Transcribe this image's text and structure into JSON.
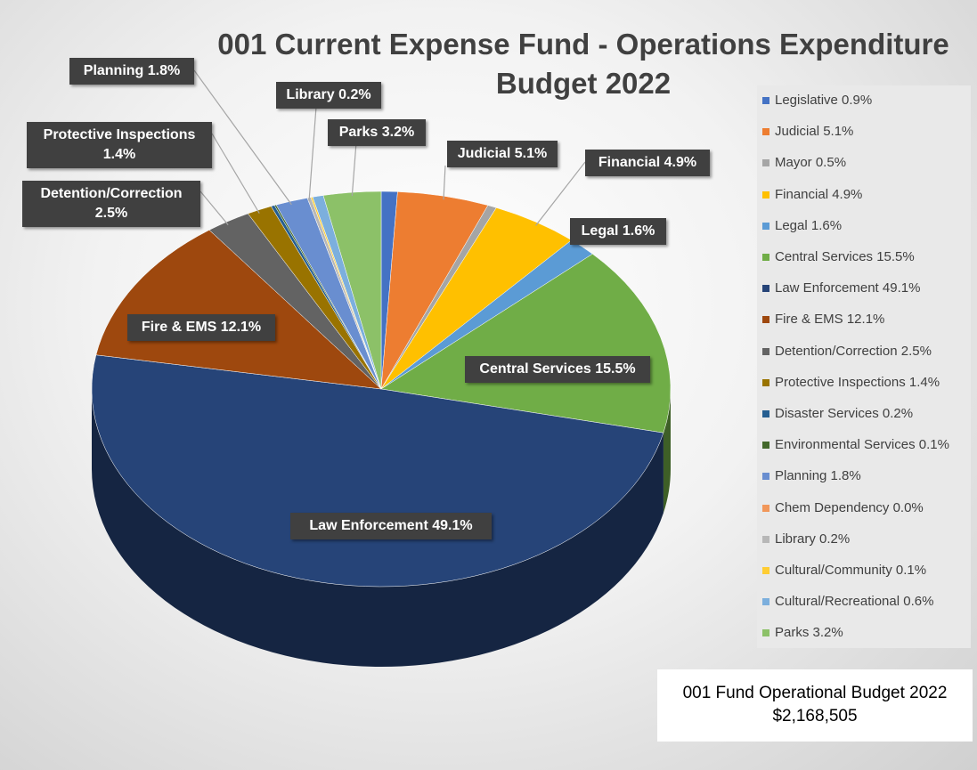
{
  "chart_data": {
    "type": "pie",
    "title": "001 Current Expense Fund - Operations Expenditure Budget 2022",
    "categories": [
      "Legislative",
      "Judicial",
      "Mayor",
      "Financial",
      "Legal",
      "Central Services",
      "Law Enforcement",
      "Fire & EMS",
      "Detention/Correction",
      "Protective Inspections",
      "Disaster Services",
      "Environmental Services",
      "Planning",
      "Chem Dependency",
      "Library",
      "Cultural/Community",
      "Cultural/Recreational",
      "Parks"
    ],
    "values": [
      0.9,
      5.1,
      0.5,
      4.9,
      1.6,
      15.5,
      49.1,
      12.1,
      2.5,
      1.4,
      0.2,
      0.1,
      1.8,
      0.0,
      0.2,
      0.1,
      0.6,
      3.2
    ],
    "value_labels": [
      "Legislative 0.9%",
      "Judicial 5.1%",
      "Mayor 0.5%",
      "Financial 4.9%",
      "Legal 1.6%",
      "Central Services 15.5%",
      "Law Enforcement 49.1%",
      "Fire & EMS 12.1%",
      "Detention/Correction 2.5%",
      "Protective Inspections 1.4%",
      "Disaster Services 0.2%",
      "Environmental Services 0.1%",
      "Planning 1.8%",
      "Chem Dependency 0.0%",
      "Library 0.2%",
      "Cultural/Community 0.1%",
      "Cultural/Recreational 0.6%",
      "Parks 3.2%"
    ],
    "colors": [
      "#4472c4",
      "#ed7d31",
      "#a5a5a5",
      "#ffc000",
      "#5b9bd5",
      "#70ad47",
      "#264478",
      "#9e480e",
      "#636363",
      "#997300",
      "#255e91",
      "#43682b",
      "#698ed0",
      "#f1975a",
      "#b7b7b7",
      "#ffcd33",
      "#7cafdd",
      "#8cc168"
    ],
    "legend": "right",
    "annotations": [
      "001 Fund Operational Budget 2022",
      "$2,168,505"
    ]
  }
}
